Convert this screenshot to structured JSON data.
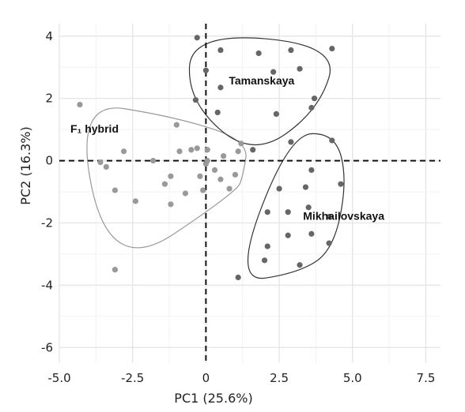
{
  "chart_data": {
    "type": "scatter",
    "xlabel": "PC1 (25.6%)",
    "ylabel": "PC2 (16.3%)",
    "xlim": [
      -5.0,
      8.0
    ],
    "ylim": [
      -6.5,
      4.4
    ],
    "xticks": [
      -5.0,
      -2.5,
      0,
      2.5,
      5.0,
      7.5
    ],
    "xtick_labels": [
      "-5.0",
      "-2.5",
      "0",
      "2.5",
      "5.0",
      "7.5"
    ],
    "yticks": [
      -6,
      -4,
      -2,
      0,
      2,
      4
    ],
    "ytick_labels": [
      "-6",
      "-4",
      "-2",
      "0",
      "2",
      "4"
    ],
    "grid": true,
    "reference_lines": {
      "x": 0,
      "y": 0,
      "style": "dashed"
    },
    "groups": [
      {
        "name": "F₁ hybrid",
        "color": "#999999",
        "hull_color": "#999999",
        "points": [
          [
            -4.3,
            1.8
          ],
          [
            -3.6,
            -0.05
          ],
          [
            -3.4,
            -0.2
          ],
          [
            -3.1,
            -0.95
          ],
          [
            -2.8,
            0.3
          ],
          [
            -2.4,
            -1.3
          ],
          [
            -1.8,
            0.0
          ],
          [
            -1.4,
            -0.75
          ],
          [
            -1.2,
            -0.5
          ],
          [
            -1.2,
            -1.4
          ],
          [
            -1.0,
            1.15
          ],
          [
            -0.9,
            0.3
          ],
          [
            -0.7,
            -1.05
          ],
          [
            -0.5,
            0.35
          ],
          [
            -0.3,
            0.4
          ],
          [
            -0.2,
            -0.5
          ],
          [
            -0.1,
            -0.95
          ],
          [
            0.0,
            -0.1
          ],
          [
            0.05,
            0.35
          ],
          [
            0.05,
            0.0
          ],
          [
            0.3,
            -0.3
          ],
          [
            0.5,
            -0.6
          ],
          [
            0.6,
            0.15
          ],
          [
            0.8,
            -0.9
          ],
          [
            1.0,
            -0.45
          ],
          [
            1.1,
            0.3
          ],
          [
            1.2,
            0.55
          ],
          [
            -3.1,
            -3.5
          ]
        ]
      },
      {
        "name": "Tamanskaya",
        "color": "#666666",
        "hull_color": "#333333",
        "points": [
          [
            -0.3,
            3.95
          ],
          [
            0.0,
            2.9
          ],
          [
            -0.35,
            1.95
          ],
          [
            0.5,
            3.55
          ],
          [
            0.5,
            2.35
          ],
          [
            0.4,
            1.55
          ],
          [
            1.8,
            3.45
          ],
          [
            2.3,
            2.85
          ],
          [
            2.9,
            3.55
          ],
          [
            3.2,
            2.95
          ],
          [
            4.3,
            3.6
          ],
          [
            3.6,
            1.7
          ],
          [
            2.4,
            1.5
          ],
          [
            1.6,
            0.35
          ],
          [
            3.7,
            2.0
          ]
        ]
      },
      {
        "name": "Mikhailovskaya",
        "color": "#666666",
        "hull_color": "#333333",
        "points": [
          [
            2.9,
            0.6
          ],
          [
            4.3,
            0.65
          ],
          [
            3.6,
            -0.3
          ],
          [
            4.6,
            -0.75
          ],
          [
            2.5,
            -0.9
          ],
          [
            3.4,
            -0.85
          ],
          [
            2.1,
            -1.65
          ],
          [
            2.8,
            -1.65
          ],
          [
            3.5,
            -1.5
          ],
          [
            4.2,
            -1.8
          ],
          [
            2.8,
            -2.4
          ],
          [
            3.6,
            -2.35
          ],
          [
            2.1,
            -2.75
          ],
          [
            4.2,
            -2.65
          ],
          [
            2.0,
            -3.2
          ],
          [
            3.2,
            -3.35
          ],
          [
            1.1,
            -3.75
          ]
        ]
      }
    ],
    "annotations": [
      {
        "text": "F₁ hybrid",
        "x": -3.8,
        "y": 0.9
      },
      {
        "text": "Tamanskaya",
        "x": 1.9,
        "y": 2.45
      },
      {
        "text": "Mikhailovskaya",
        "x": 4.7,
        "y": -1.9
      }
    ]
  }
}
